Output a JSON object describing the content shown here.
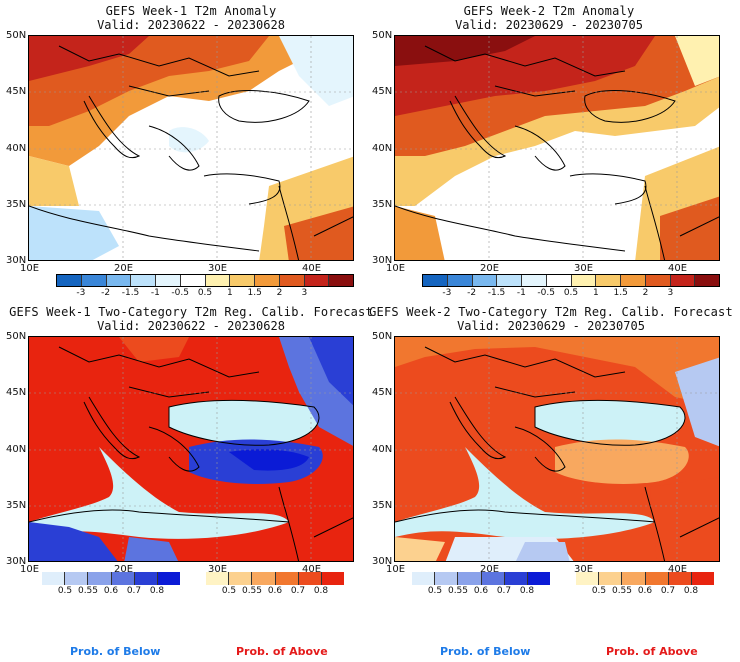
{
  "panels": [
    {
      "title": "GEFS Week-1 T2m Anomaly",
      "valid": "Valid: 20230622 - 20230628"
    },
    {
      "title": "GEFS Week-2 T2m Anomaly",
      "valid": "Valid: 20230629 - 20230705"
    },
    {
      "title": "GEFS Week-1 Two-Category T2m Reg. Calib. Forecast",
      "valid": "Valid: 20230622 - 20230628"
    },
    {
      "title": "GEFS Week-2 Two-Category T2m Reg. Calib. Forecast",
      "valid": "Valid: 20230629 - 20230705"
    }
  ],
  "lat_labels": [
    "50N",
    "45N",
    "40N",
    "35N",
    "30N"
  ],
  "lon_labels": [
    "10E",
    "20E",
    "30E",
    "40E"
  ],
  "anomaly_ticks": [
    "-3",
    "-2",
    "-1.5",
    "-1",
    "-0.5",
    "0.5",
    "1",
    "1.5",
    "2",
    "3"
  ],
  "anomaly_colors": [
    "#1565c0",
    "#3a86d8",
    "#79b8ef",
    "#bde2fb",
    "#e4f5fd",
    "#ffffff",
    "#fff1b0",
    "#f8ca6a",
    "#f29a3a",
    "#e05a1f",
    "#c4241b",
    "#8a0f0f"
  ],
  "prob_ticks": [
    "0.5",
    "0.55",
    "0.6",
    "0.7",
    "0.8"
  ],
  "below_colors": [
    "#dfeefb",
    "#b6c9f2",
    "#8aa2ea",
    "#5c74df",
    "#2a3fd5",
    "#0b1bd6"
  ],
  "above_colors": [
    "#fff3c4",
    "#fcd18f",
    "#f8a85f",
    "#f1772f",
    "#ec4b1e",
    "#e8240f"
  ],
  "footer": {
    "below": "Prob. of Below",
    "above": "Prob. of Above"
  },
  "colors": {
    "below_label": "#1e7be8",
    "above_label": "#e41a1a",
    "sea": "#cdf2f7"
  }
}
